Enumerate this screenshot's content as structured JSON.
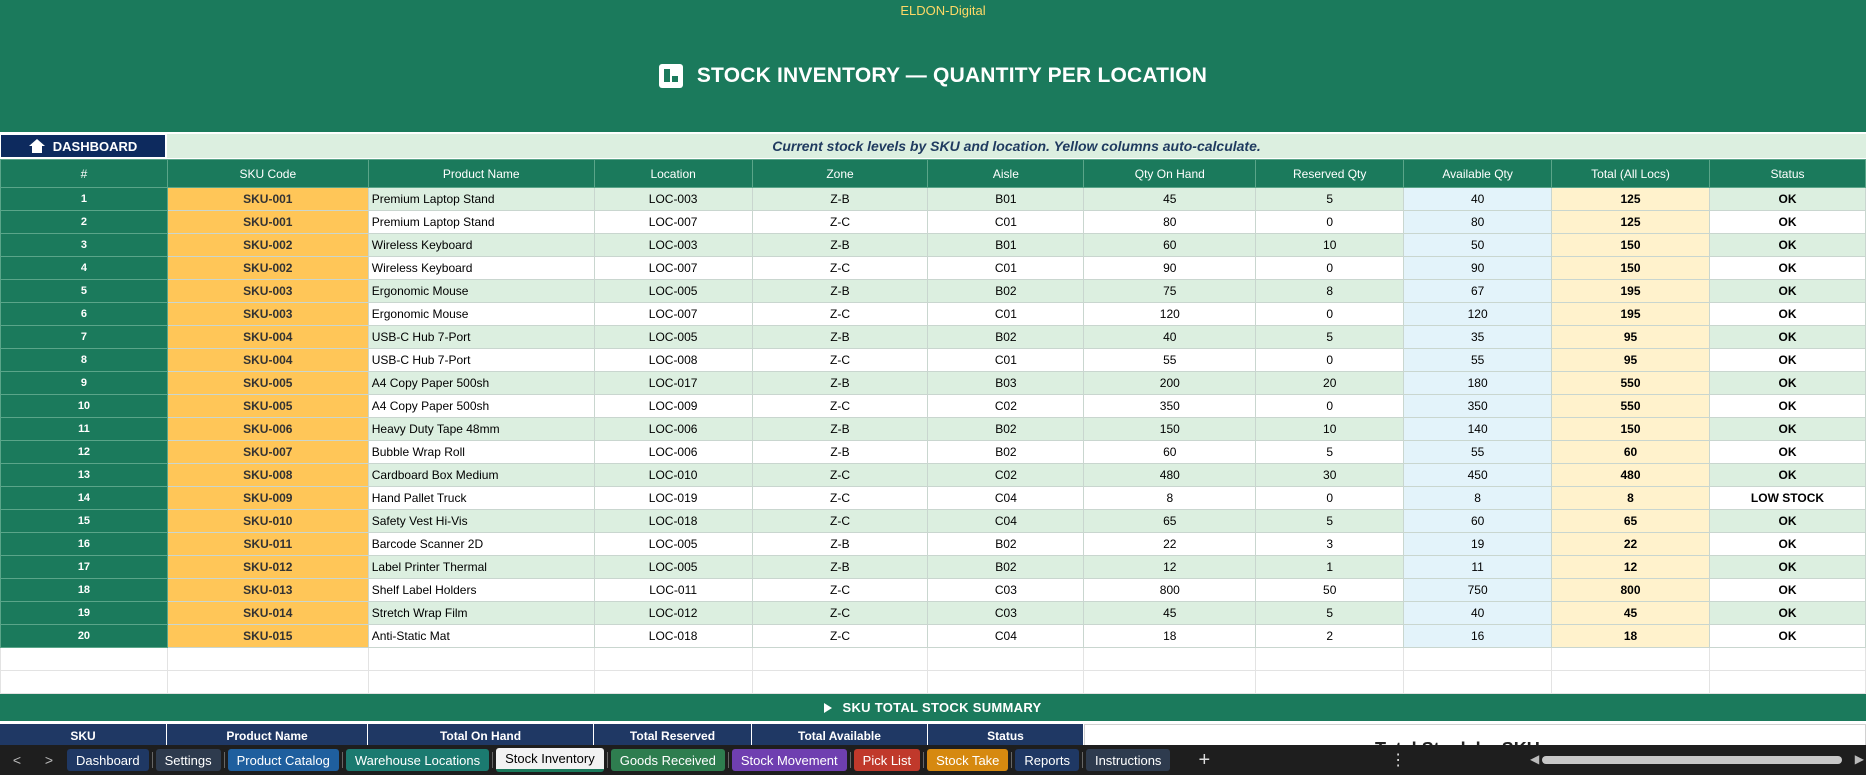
{
  "banner": {
    "brand": "ELDON-Digital",
    "title": "STOCK INVENTORY — QUANTITY PER LOCATION",
    "title_icon": "warehouse-icon"
  },
  "dashboard_button": {
    "label": "DASHBOARD",
    "icon": "home-icon"
  },
  "subtitle": "Current stock levels by SKU and location. Yellow columns auto-calculate.",
  "columns": [
    "#",
    "SKU Code",
    "Product Name",
    "Location",
    "Zone",
    "Aisle",
    "Qty On Hand",
    "Reserved Qty",
    "Available Qty",
    "Total (All Locs)",
    "Status"
  ],
  "rows": [
    [
      "1",
      "SKU-001",
      "Premium Laptop Stand",
      "LOC-003",
      "Z-B",
      "B01",
      "45",
      "5",
      "40",
      "125",
      "OK"
    ],
    [
      "2",
      "SKU-001",
      "Premium Laptop Stand",
      "LOC-007",
      "Z-C",
      "C01",
      "80",
      "0",
      "80",
      "125",
      "OK"
    ],
    [
      "3",
      "SKU-002",
      "Wireless Keyboard",
      "LOC-003",
      "Z-B",
      "B01",
      "60",
      "10",
      "50",
      "150",
      "OK"
    ],
    [
      "4",
      "SKU-002",
      "Wireless Keyboard",
      "LOC-007",
      "Z-C",
      "C01",
      "90",
      "0",
      "90",
      "150",
      "OK"
    ],
    [
      "5",
      "SKU-003",
      "Ergonomic Mouse",
      "LOC-005",
      "Z-B",
      "B02",
      "75",
      "8",
      "67",
      "195",
      "OK"
    ],
    [
      "6",
      "SKU-003",
      "Ergonomic Mouse",
      "LOC-007",
      "Z-C",
      "C01",
      "120",
      "0",
      "120",
      "195",
      "OK"
    ],
    [
      "7",
      "SKU-004",
      "USB-C Hub 7-Port",
      "LOC-005",
      "Z-B",
      "B02",
      "40",
      "5",
      "35",
      "95",
      "OK"
    ],
    [
      "8",
      "SKU-004",
      "USB-C Hub 7-Port",
      "LOC-008",
      "Z-C",
      "C01",
      "55",
      "0",
      "55",
      "95",
      "OK"
    ],
    [
      "9",
      "SKU-005",
      "A4 Copy Paper 500sh",
      "LOC-017",
      "Z-B",
      "B03",
      "200",
      "20",
      "180",
      "550",
      "OK"
    ],
    [
      "10",
      "SKU-005",
      "A4 Copy Paper 500sh",
      "LOC-009",
      "Z-C",
      "C02",
      "350",
      "0",
      "350",
      "550",
      "OK"
    ],
    [
      "11",
      "SKU-006",
      "Heavy Duty Tape 48mm",
      "LOC-006",
      "Z-B",
      "B02",
      "150",
      "10",
      "140",
      "150",
      "OK"
    ],
    [
      "12",
      "SKU-007",
      "Bubble Wrap Roll",
      "LOC-006",
      "Z-B",
      "B02",
      "60",
      "5",
      "55",
      "60",
      "OK"
    ],
    [
      "13",
      "SKU-008",
      "Cardboard Box Medium",
      "LOC-010",
      "Z-C",
      "C02",
      "480",
      "30",
      "450",
      "480",
      "OK"
    ],
    [
      "14",
      "SKU-009",
      "Hand Pallet Truck",
      "LOC-019",
      "Z-C",
      "C04",
      "8",
      "0",
      "8",
      "8",
      "LOW STOCK"
    ],
    [
      "15",
      "SKU-010",
      "Safety Vest Hi-Vis",
      "LOC-018",
      "Z-C",
      "C04",
      "65",
      "5",
      "60",
      "65",
      "OK"
    ],
    [
      "16",
      "SKU-011",
      "Barcode Scanner 2D",
      "LOC-005",
      "Z-B",
      "B02",
      "22",
      "3",
      "19",
      "22",
      "OK"
    ],
    [
      "17",
      "SKU-012",
      "Label Printer Thermal",
      "LOC-005",
      "Z-B",
      "B02",
      "12",
      "1",
      "11",
      "12",
      "OK"
    ],
    [
      "18",
      "SKU-013",
      "Shelf Label Holders",
      "LOC-011",
      "Z-C",
      "C03",
      "800",
      "50",
      "750",
      "800",
      "OK"
    ],
    [
      "19",
      "SKU-014",
      "Stretch Wrap Film",
      "LOC-012",
      "Z-C",
      "C03",
      "45",
      "5",
      "40",
      "45",
      "OK"
    ],
    [
      "20",
      "SKU-015",
      "Anti-Static Mat",
      "LOC-018",
      "Z-C",
      "C04",
      "18",
      "2",
      "16",
      "18",
      "OK"
    ]
  ],
  "summary": {
    "title": "SKU TOTAL STOCK SUMMARY",
    "columns": [
      "SKU",
      "Product Name",
      "Total On Hand",
      "Total Reserved",
      "Total Available",
      "Status"
    ],
    "chart_title_partial": "Total Stock by SKU"
  },
  "tabs": [
    {
      "label": "Dashboard",
      "color": "#1f3864",
      "active": false
    },
    {
      "label": "Settings",
      "color": "#2e3b4e",
      "active": false
    },
    {
      "label": "Product Catalog",
      "color": "#1f5f9e",
      "active": false
    },
    {
      "label": "Warehouse Locations",
      "color": "#1b7a70",
      "active": false
    },
    {
      "label": "Stock Inventory",
      "color": "#f2f2f2",
      "active": true
    },
    {
      "label": "Goods Received",
      "color": "#2e7d4f",
      "active": false
    },
    {
      "label": "Stock Movement",
      "color": "#6f3fb0",
      "active": false
    },
    {
      "label": "Pick List",
      "color": "#c0392b",
      "active": false
    },
    {
      "label": "Stock Take",
      "color": "#d68910",
      "active": false
    },
    {
      "label": "Reports",
      "color": "#1f3864",
      "active": false
    },
    {
      "label": "Instructions",
      "color": "#2e3b4e",
      "active": false
    }
  ],
  "tabbar": {
    "add_label": "+",
    "more_label": "⋮",
    "prev_label": "<",
    "next_label": ">"
  }
}
